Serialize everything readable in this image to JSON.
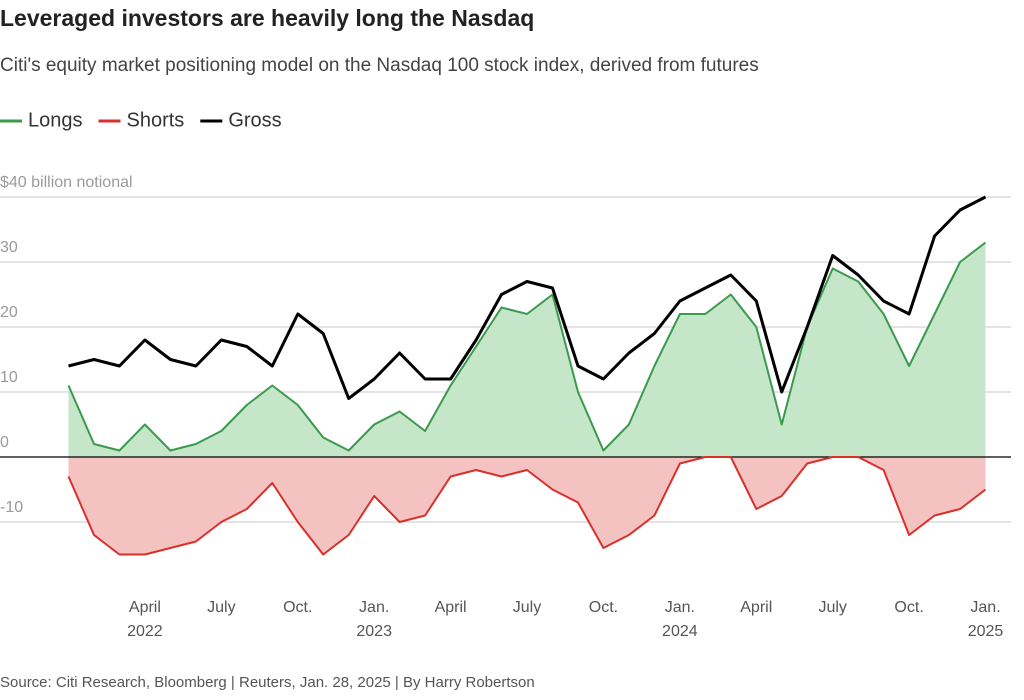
{
  "chart_data": {
    "type": "line",
    "title": "Leveraged investors are heavily long the Nasdaq",
    "subtitle": "Citi's equity market positioning model on the Nasdaq 100 stock index, derived from futures",
    "source": "Source: Citi Research, Bloomberg | Reuters, Jan. 28, 2025 | By Harry Robertson",
    "x": [
      "2022-01",
      "2022-02",
      "2022-03",
      "2022-04",
      "2022-05",
      "2022-06",
      "2022-07",
      "2022-08",
      "2022-09",
      "2022-10",
      "2022-11",
      "2022-12",
      "2023-01",
      "2023-02",
      "2023-03",
      "2023-04",
      "2023-05",
      "2023-06",
      "2023-07",
      "2023-08",
      "2023-09",
      "2023-10",
      "2023-11",
      "2023-12",
      "2024-01",
      "2024-02",
      "2024-03",
      "2024-04",
      "2024-05",
      "2024-06",
      "2024-07",
      "2024-08",
      "2024-09",
      "2024-10",
      "2024-11",
      "2024-12",
      "2025-01"
    ],
    "series": [
      {
        "name": "Longs",
        "color": "#3a9a4e",
        "area_color": "#c5e6c9",
        "values": [
          11,
          2,
          1,
          5,
          1,
          2,
          4,
          8,
          11,
          8,
          3,
          1,
          5,
          7,
          4,
          11,
          17,
          23,
          22,
          25,
          10,
          1,
          5,
          14,
          22,
          22,
          25,
          20,
          5,
          20,
          29,
          27,
          22,
          14,
          22,
          30,
          33
        ]
      },
      {
        "name": "Shorts",
        "color": "#d8302b",
        "area_color": "#f4c3c1",
        "values": [
          -3,
          -12,
          -15,
          -15,
          -14,
          -13,
          -10,
          -8,
          -4,
          -10,
          -15,
          -12,
          -6,
          -10,
          -9,
          -3,
          -2,
          -3,
          -2,
          -5,
          -7,
          -14,
          -12,
          -9,
          -1,
          0,
          0,
          -8,
          -6,
          -1,
          0,
          0,
          -2,
          -12,
          -9,
          -8,
          -5
        ]
      },
      {
        "name": "Gross",
        "color": "#000000",
        "values": [
          14,
          15,
          14,
          18,
          15,
          14,
          18,
          17,
          14,
          22,
          19,
          9,
          12,
          16,
          12,
          12,
          18,
          25,
          27,
          26,
          14,
          12,
          16,
          19,
          24,
          26,
          28,
          24,
          10,
          20,
          31,
          28,
          24,
          22,
          34,
          38,
          40
        ]
      }
    ],
    "xlim": [
      "2022-01",
      "2025-02"
    ],
    "xticks": [
      {
        "value": "2022-04",
        "label": "April"
      },
      {
        "value": "2022-07",
        "label": "July"
      },
      {
        "value": "2022-10",
        "label": "Oct."
      },
      {
        "value": "2023-01",
        "label": "Jan."
      },
      {
        "value": "2023-04",
        "label": "April"
      },
      {
        "value": "2023-07",
        "label": "July"
      },
      {
        "value": "2023-10",
        "label": "Oct."
      },
      {
        "value": "2024-01",
        "label": "Jan."
      },
      {
        "value": "2024-04",
        "label": "April"
      },
      {
        "value": "2024-07",
        "label": "July"
      },
      {
        "value": "2024-10",
        "label": "Oct."
      },
      {
        "value": "2025-01",
        "label": "Jan."
      }
    ],
    "xyears": [
      {
        "value": "2022-04",
        "label": "2022"
      },
      {
        "value": "2023-01",
        "label": "2023"
      },
      {
        "value": "2024-01",
        "label": "2024"
      },
      {
        "value": "2025-01",
        "label": "2025"
      }
    ],
    "ylim": [
      -21,
      47
    ],
    "yticks": [
      -10,
      0,
      10,
      20,
      30,
      {
        "value": 40,
        "label": "$40 billion notional"
      }
    ],
    "grid": true
  }
}
